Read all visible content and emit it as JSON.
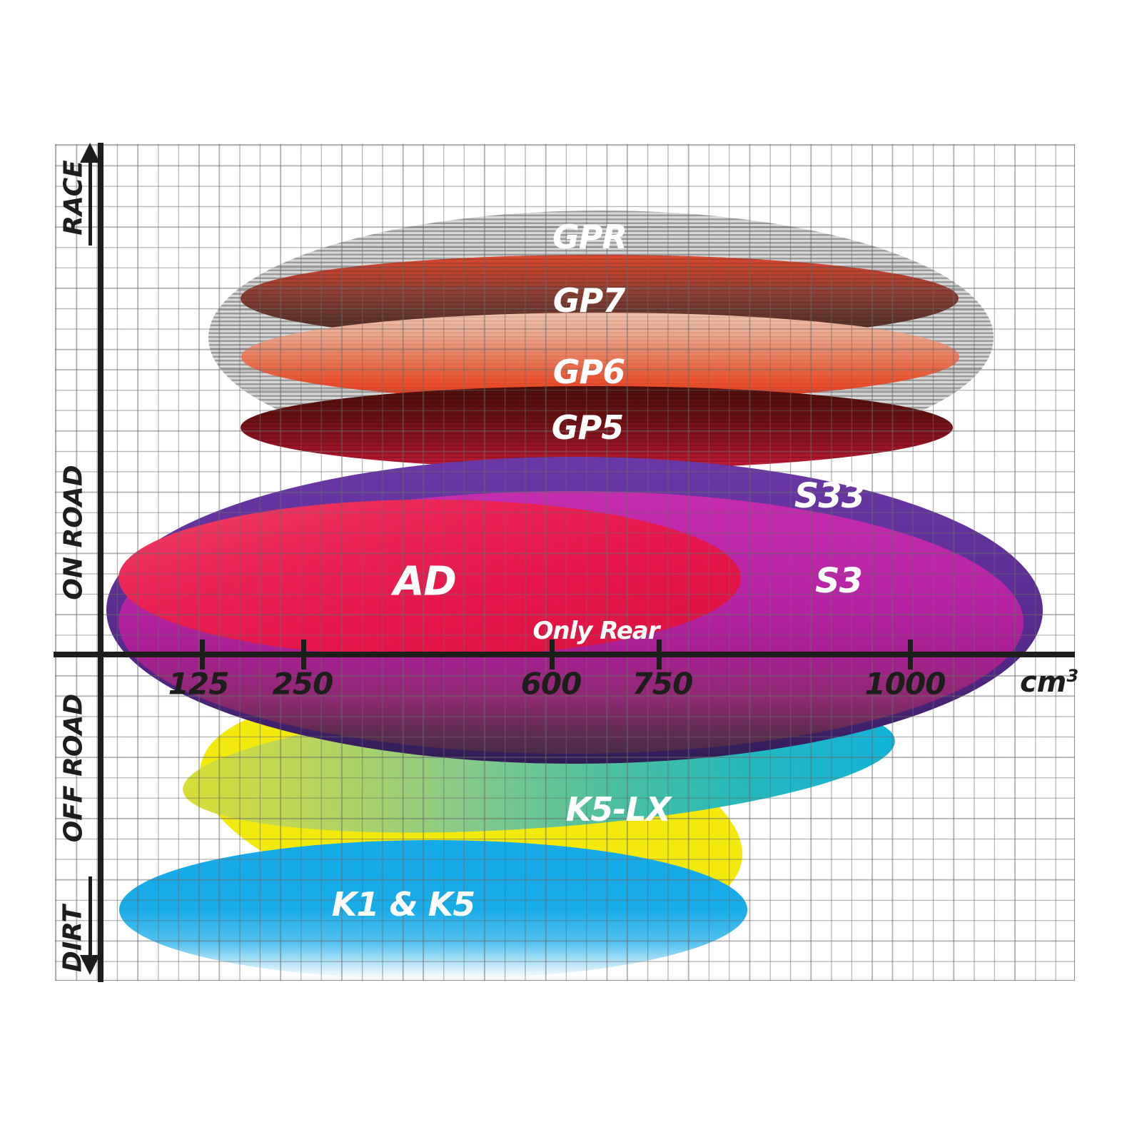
{
  "chart_data": {
    "type": "area",
    "title": "",
    "description": "Brake pad compound application ranges plotted by engine displacement (x) and riding category (y)",
    "xlabel": "cm³",
    "x_unit_base": "cm",
    "x_unit_exp": "3",
    "x_tick_labels": [
      "125",
      "250",
      "600",
      "750",
      "1000"
    ],
    "x_ticks": [
      125,
      250,
      600,
      750,
      1000
    ],
    "y_zone_labels": [
      "RACE",
      "ON ROAD",
      "OFF ROAD",
      "DIRT"
    ],
    "grid": true,
    "legend_position": "none",
    "regions": [
      {
        "label": "GPR",
        "zone": "RACE",
        "cc_range": [
          130,
          1080
        ],
        "color": "#9b9b9b",
        "style": "hatched-grey"
      },
      {
        "label": "GP7",
        "zone": "RACE",
        "cc_range": [
          175,
          1050
        ],
        "color": "#8a4034",
        "style": "red-to-brown gradient"
      },
      {
        "label": "GP6",
        "zone": "RACE",
        "cc_range": [
          175,
          1050
        ],
        "color": "#e8552f",
        "style": "salmon-to-red gradient"
      },
      {
        "label": "GP5",
        "zone": "RACE",
        "cc_range": [
          175,
          1040
        ],
        "color": "#8c1320",
        "style": "dark-maroon-to-crimson gradient"
      },
      {
        "label": "S33",
        "zone": "ON ROAD",
        "cc_range": [
          50,
          1150
        ],
        "color": "#5b2d91",
        "style": "purple"
      },
      {
        "label": "S3",
        "zone": "ON ROAD",
        "cc_range": [
          30,
          1120
        ],
        "color": "#a81f92",
        "style": "magenta"
      },
      {
        "label": "AD",
        "zone": "ON ROAD",
        "cc_range": [
          30,
          830
        ],
        "color": "#e6164a",
        "style": "crimson",
        "note": "Only Rear"
      },
      {
        "label": "K5-LX",
        "zone": "OFF ROAD",
        "cc_range": [
          100,
          1000
        ],
        "color": "#2eb9a4",
        "style": "yellow-green-to-cyan gradient"
      },
      {
        "label": "K1 & K5",
        "zone": "DIRT",
        "cc_range": [
          25,
          840
        ],
        "color": "#18ace8",
        "style": "cyan with yellow backdrop"
      }
    ]
  },
  "colors": {
    "background": "#ffffff",
    "axis": "#1d1d1b",
    "grid_line": "#9a9a9a",
    "yellow_backdrop": "#f3e90d"
  }
}
